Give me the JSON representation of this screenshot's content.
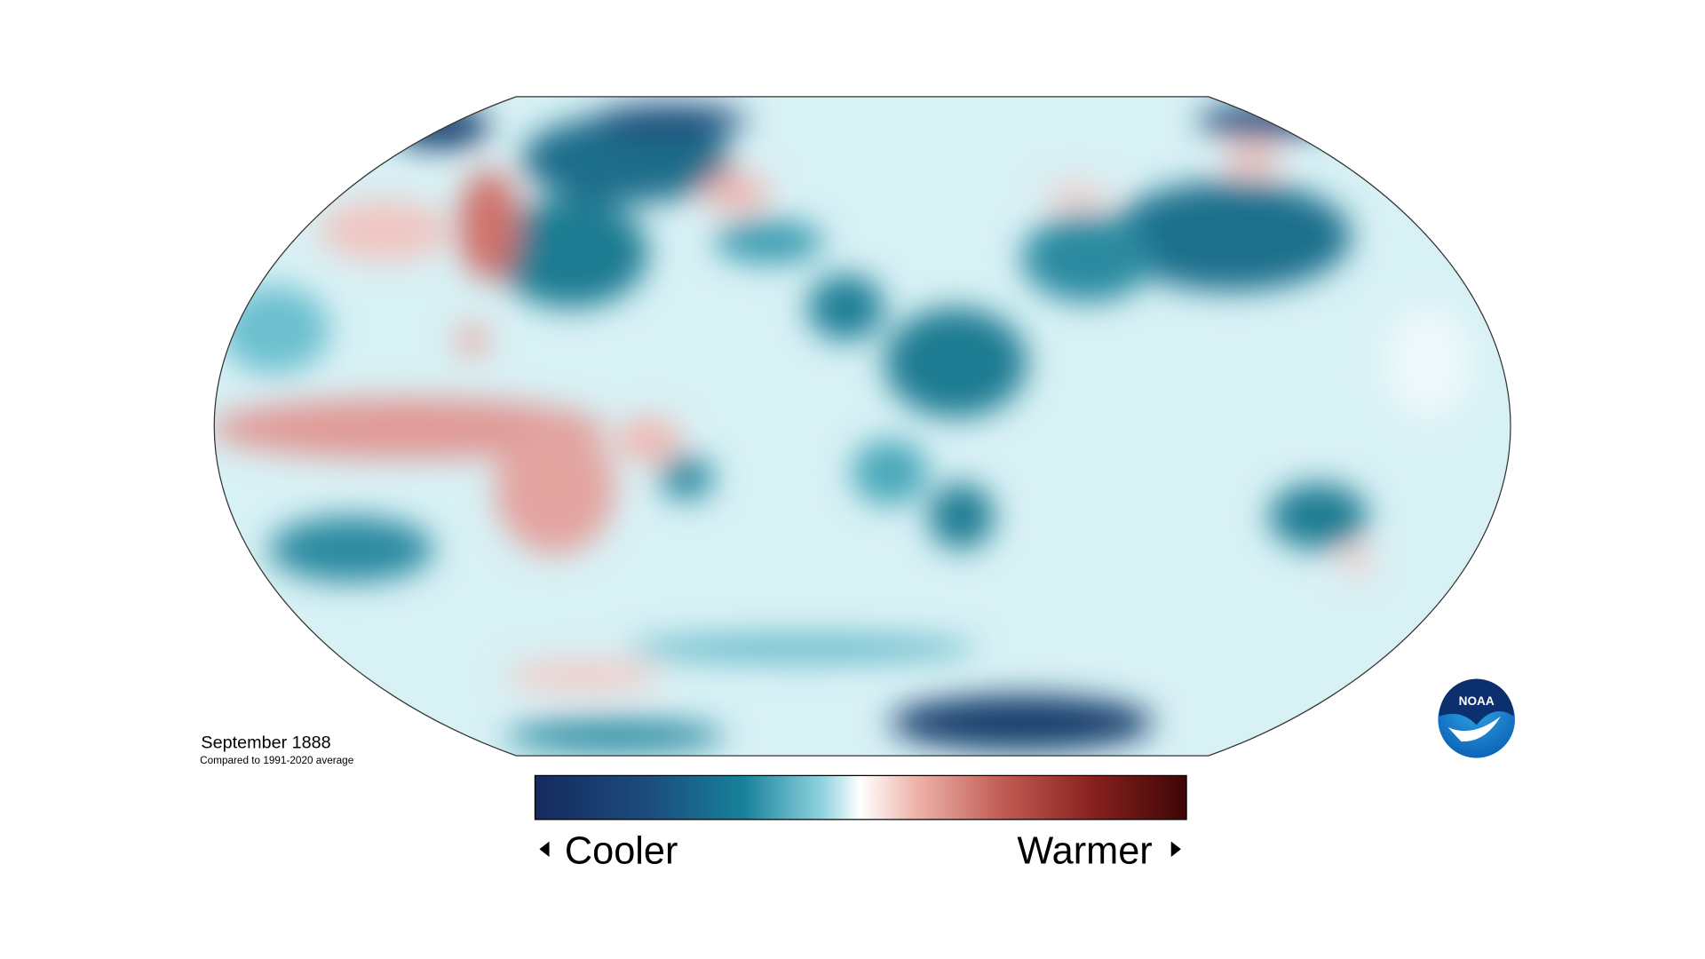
{
  "title": "September 1888",
  "subtitle": "Compared to 1991-2020 average",
  "legend": {
    "low": "Cooler",
    "high": "Warmer"
  },
  "logo": "NOAA"
}
